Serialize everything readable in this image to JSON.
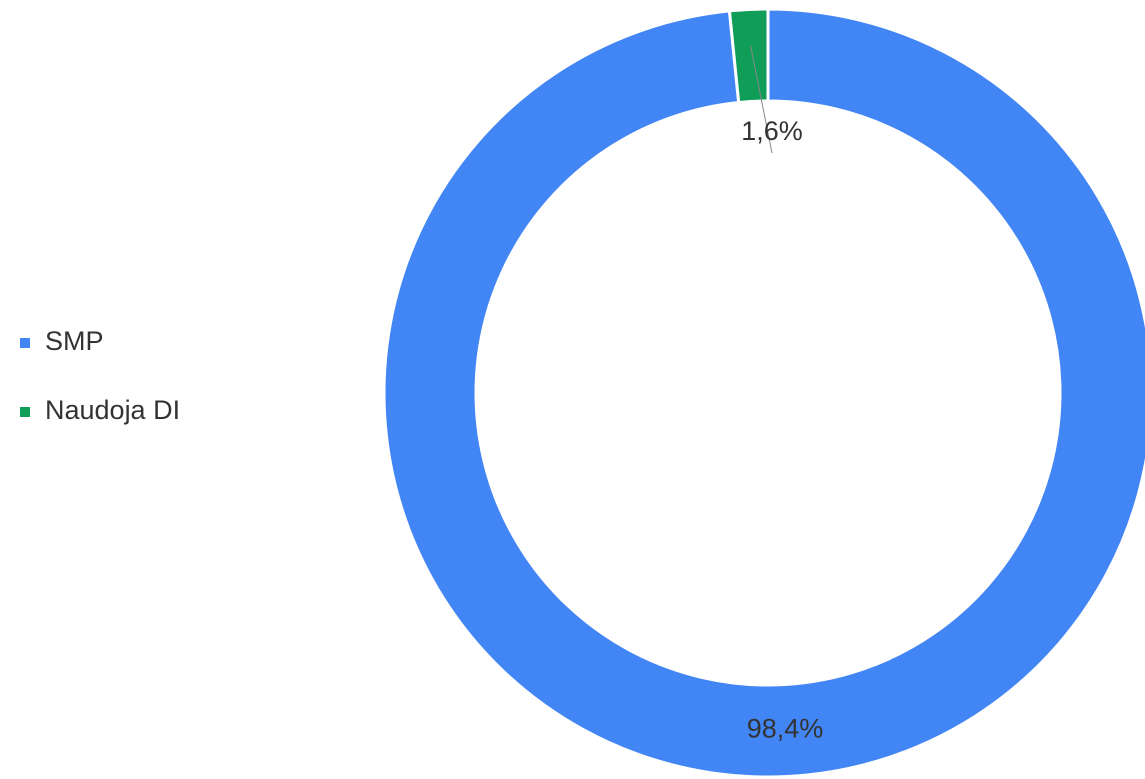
{
  "chart_data": {
    "type": "donut",
    "categories": [
      "SMP",
      "Naudoja DI"
    ],
    "values": [
      98.4,
      1.6
    ],
    "value_labels": [
      "98,4%",
      "1,6%"
    ],
    "colors": [
      "#4285f4",
      "#0f9d58"
    ],
    "legend": "left"
  }
}
